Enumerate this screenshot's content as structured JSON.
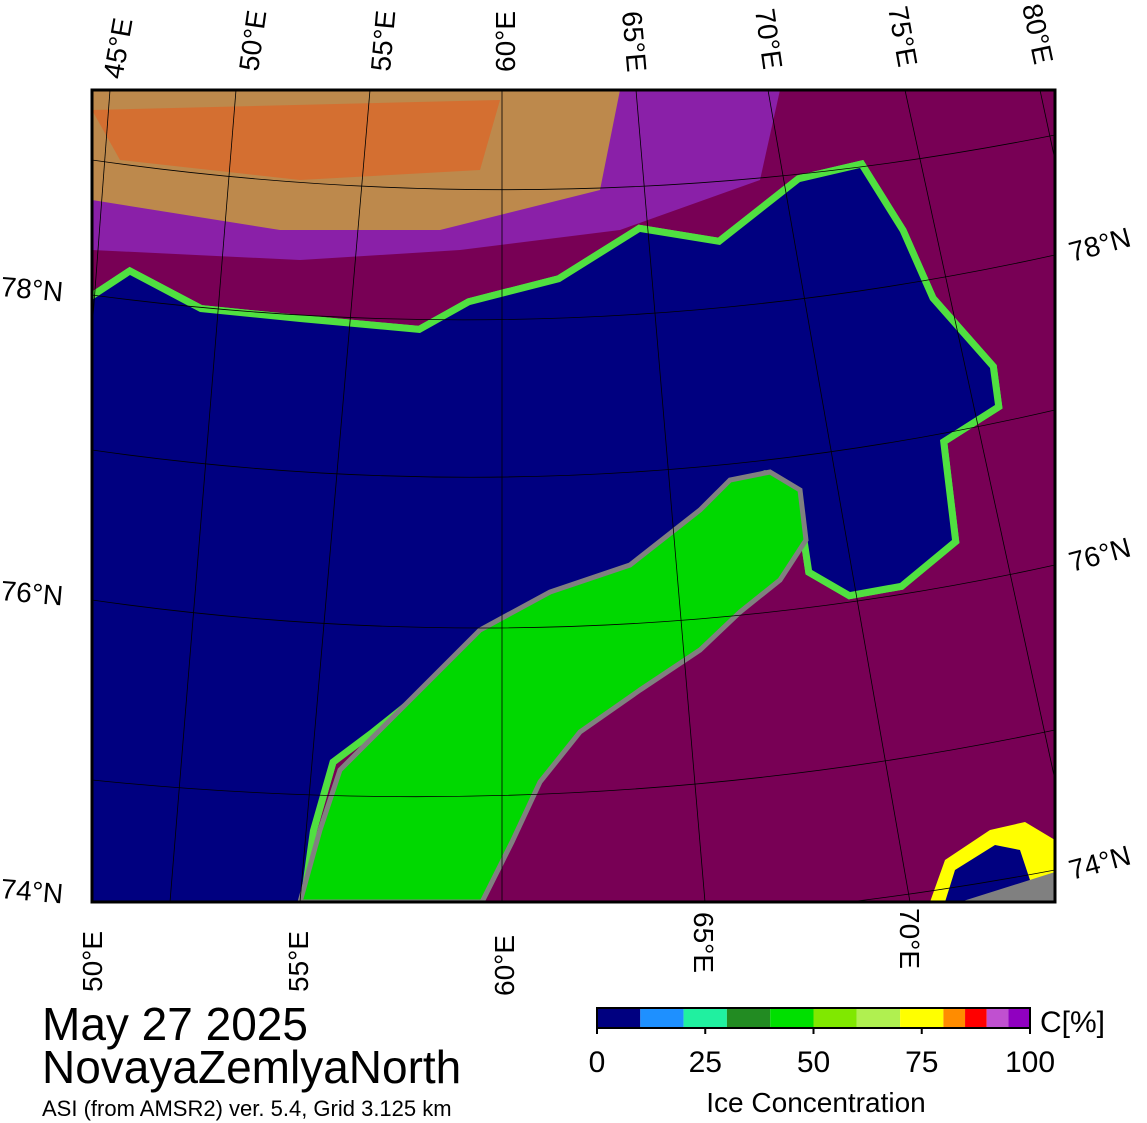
{
  "map": {
    "top_lon_labels": [
      "45°E",
      "50°E",
      "55°E",
      "60°E",
      "65°E",
      "70°E",
      "75°E",
      "80°E"
    ],
    "bottom_lon_labels": [
      "50°E",
      "55°E",
      "60°E",
      "65°E",
      "70°E"
    ],
    "left_lat_labels": [
      "78°N",
      "76°N",
      "74°N"
    ],
    "right_lat_labels": [
      "78°N",
      "76°N",
      "74°N"
    ]
  },
  "title": {
    "date": "May 27 2025",
    "region": "NovayaZemlyaNorth",
    "source": "ASI (from AMSR2) ver. 5.4,  Grid 3.125 km"
  },
  "colorbar": {
    "unit": "C[%]",
    "label": "Ice Concentration",
    "ticks": [
      0,
      25,
      50,
      75,
      100
    ],
    "bounds": [
      0,
      10,
      20,
      30,
      40,
      50,
      60,
      70,
      80,
      85,
      90,
      95,
      100
    ],
    "colors": [
      "#000080",
      "#1e90ff",
      "#20f0a0",
      "#228b22",
      "#00e000",
      "#80e800",
      "#b0f050",
      "#ffff00",
      "#ff8c00",
      "#ff0000",
      "#c050d0",
      "#9000c0"
    ]
  }
}
